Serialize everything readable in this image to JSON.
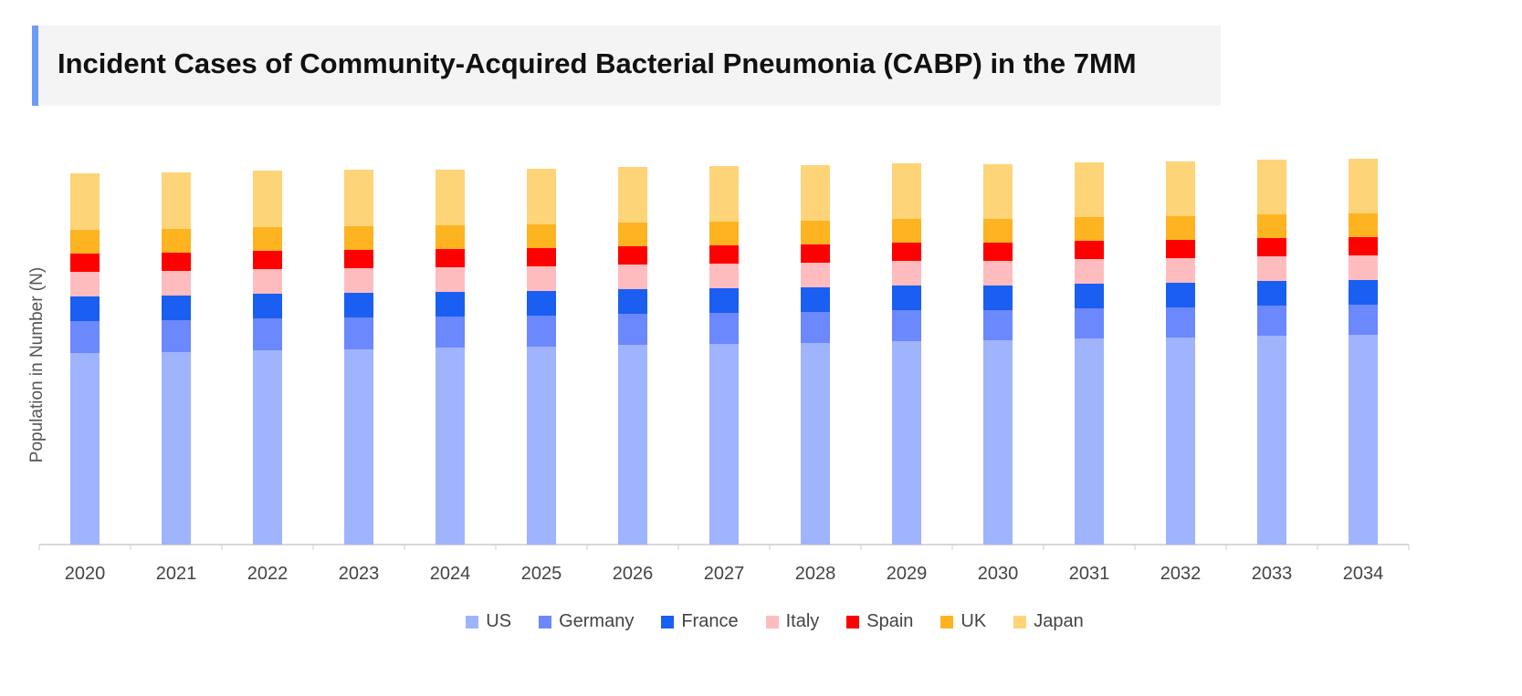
{
  "chart_data": {
    "type": "bar",
    "stacked": true,
    "title": "Incident Cases of Community-Acquired Bacterial Pneumonia (CABP) in the 7MM",
    "xlabel": "",
    "ylabel": "Population in Number (N)",
    "ylim": [
      0,
      457
    ],
    "grid": false,
    "legend": "bottom",
    "categories": [
      "2020",
      "2021",
      "2022",
      "2023",
      "2024",
      "2025",
      "2026",
      "2027",
      "2028",
      "2029",
      "2030",
      "2031",
      "2032",
      "2033",
      "2034"
    ],
    "series": [
      {
        "name": "US",
        "color": "#a0b4fd",
        "values": [
          210,
          211,
          213,
          214,
          216,
          217,
          219,
          220,
          221,
          223,
          224,
          226,
          227,
          229,
          230
        ]
      },
      {
        "name": "Germany",
        "color": "#6b88fd",
        "values": [
          35,
          35,
          35,
          35,
          34,
          34,
          34,
          34,
          34,
          34,
          33,
          33,
          33,
          33,
          33
        ]
      },
      {
        "name": "France",
        "color": "#1a5ef2",
        "values": [
          27,
          27,
          27,
          27,
          27,
          27,
          27,
          27,
          27,
          27,
          27,
          27,
          27,
          27,
          27
        ]
      },
      {
        "name": "Italy",
        "color": "#ffbcbf",
        "values": [
          27,
          27,
          27,
          27,
          27,
          27,
          27,
          27,
          27,
          27,
          27,
          27,
          27,
          27,
          27
        ]
      },
      {
        "name": "Spain",
        "color": "#fe0000",
        "values": [
          20,
          20,
          20,
          20,
          20,
          20,
          20,
          20,
          20,
          20,
          20,
          20,
          20,
          20,
          20
        ]
      },
      {
        "name": "UK",
        "color": "#feb321",
        "values": [
          26,
          26,
          26,
          26,
          26,
          26,
          26,
          26,
          26,
          26,
          26,
          26,
          26,
          26,
          26
        ]
      },
      {
        "name": "Japan",
        "color": "#fed479",
        "values": [
          62,
          62,
          62,
          62,
          61,
          61,
          61,
          61,
          61,
          61,
          60,
          60,
          60,
          60,
          60
        ]
      }
    ]
  }
}
